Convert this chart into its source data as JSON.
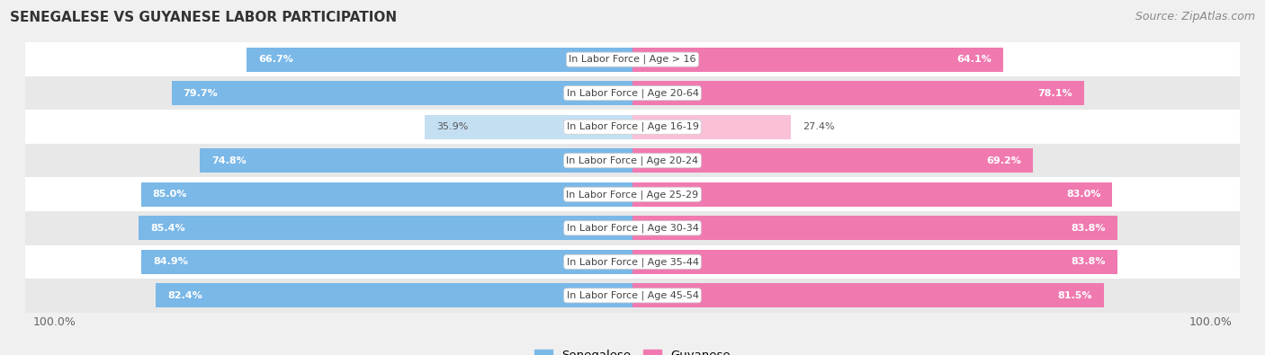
{
  "title": "SENEGALESE VS GUYANESE LABOR PARTICIPATION",
  "source": "Source: ZipAtlas.com",
  "categories": [
    "In Labor Force | Age > 16",
    "In Labor Force | Age 20-64",
    "In Labor Force | Age 16-19",
    "In Labor Force | Age 20-24",
    "In Labor Force | Age 25-29",
    "In Labor Force | Age 30-34",
    "In Labor Force | Age 35-44",
    "In Labor Force | Age 45-54"
  ],
  "senegalese": [
    66.7,
    79.7,
    35.9,
    74.8,
    85.0,
    85.4,
    84.9,
    82.4
  ],
  "guyanese": [
    64.1,
    78.1,
    27.4,
    69.2,
    83.0,
    83.8,
    83.8,
    81.5
  ],
  "senegalese_color_dark": "#7ab8e8",
  "senegalese_color_light": "#c5dff2",
  "guyanese_color_dark": "#f07ab0",
  "guyanese_color_light": "#f9c0d8",
  "background_color": "#f0f0f0",
  "row_bg_light": "#ffffff",
  "row_bg_dark": "#e8e8e8",
  "legend_labels": [
    "Senegalese",
    "Guyanese"
  ],
  "x_max": 100.0,
  "threshold": 50.0
}
